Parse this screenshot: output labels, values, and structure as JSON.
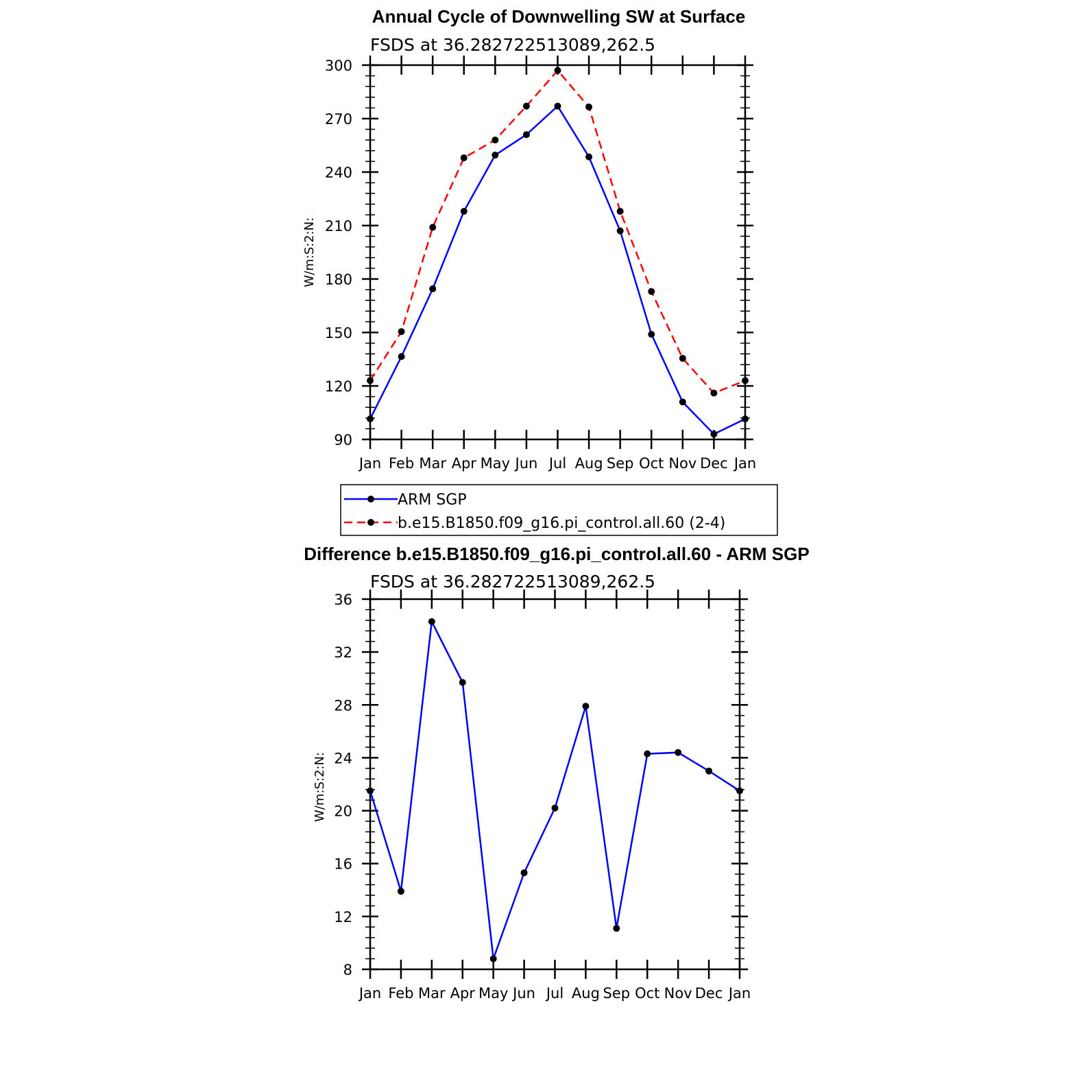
{
  "chart_data": [
    {
      "type": "line",
      "title": "Annual Cycle of Downwelling SW at Surface",
      "subtitle": "FSDS at 36.282722513089,262.5",
      "xlabel": "",
      "ylabel": "W/m:S:2:N:",
      "categories": [
        "Jan",
        "Feb",
        "Mar",
        "Apr",
        "May",
        "Jun",
        "Jul",
        "Aug",
        "Sep",
        "Oct",
        "Nov",
        "Dec",
        "Jan"
      ],
      "ylim": [
        90,
        300
      ],
      "yticks": [
        "90",
        "120",
        "150",
        "180",
        "210",
        "240",
        "270",
        "300"
      ],
      "series": [
        {
          "name": "ARM SGP",
          "color": "#0000ff",
          "dash": "solid",
          "values": [
            101.5,
            136.5,
            174.5,
            218,
            249.5,
            261,
            277,
            248.5,
            207,
            149,
            111,
            93,
            101.5
          ]
        },
        {
          "name": "b.e15.B1850.f09_g16.pi_control.all.60 (2-4)",
          "color": "#ff0000",
          "dash": "dashed",
          "values": [
            123,
            150.5,
            209,
            248,
            258,
            277,
            297,
            276.5,
            218,
            173,
            135.5,
            116,
            123
          ]
        }
      ],
      "legend_position": "bottom"
    },
    {
      "type": "line",
      "title": "Difference b.e15.B1850.f09_g16.pi_control.all.60 - ARM SGP",
      "subtitle": "FSDS at 36.282722513089,262.5",
      "xlabel": "",
      "ylabel": "W/m:S:2:N:",
      "categories": [
        "Jan",
        "Feb",
        "Mar",
        "Apr",
        "May",
        "Jun",
        "Jul",
        "Aug",
        "Sep",
        "Oct",
        "Nov",
        "Dec",
        "Jan"
      ],
      "ylim": [
        8,
        36
      ],
      "yticks": [
        "8",
        "12",
        "16",
        "20",
        "24",
        "28",
        "32",
        "36"
      ],
      "series": [
        {
          "color": "#0000ff",
          "dash": "solid",
          "values": [
            21.5,
            13.9,
            34.3,
            29.7,
            8.8,
            15.3,
            20.2,
            27.9,
            11.1,
            24.3,
            24.4,
            23.0,
            21.5
          ]
        }
      ]
    }
  ]
}
